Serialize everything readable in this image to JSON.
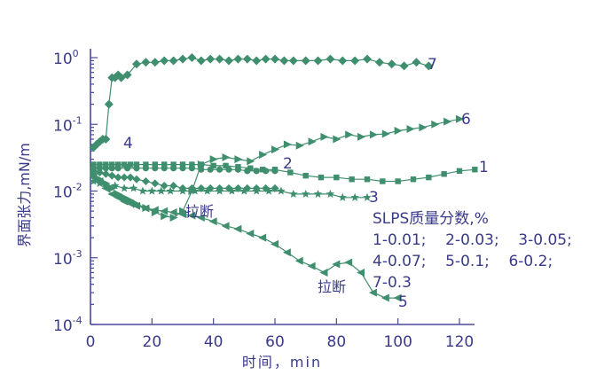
{
  "chart_data": {
    "type": "scatter",
    "title": "",
    "xlabel": "时间，min",
    "ylabel": "界面张力,mN/m",
    "xlim": [
      0,
      130
    ],
    "ylim": [
      0.0001,
      1.6
    ],
    "y_scale": "log",
    "x_ticks": [
      "0",
      "20",
      "40",
      "60",
      "80",
      "100",
      "120"
    ],
    "y_ticks": [
      {
        "base": "10",
        "exp": "0"
      },
      {
        "base": "10",
        "exp": "-1"
      },
      {
        "base": "10",
        "exp": "-2"
      },
      {
        "base": "10",
        "exp": "-3"
      },
      {
        "base": "10",
        "exp": "-4"
      }
    ],
    "legend": {
      "title": "SLPS质量分数,%",
      "lines": [
        "1-0.01;    2-0.03;    3-0.05;",
        "4-0.07;    5-0.1;    6-0.2;",
        "7-0.3"
      ]
    },
    "annotations": [
      "拉断",
      "拉断"
    ],
    "colors": {
      "series": "#3f8f6f",
      "text": "#3a3a8a"
    },
    "series": [
      {
        "name": "1",
        "marker": "square",
        "label": "1",
        "x": [
          1,
          3,
          5,
          7,
          9,
          11,
          13,
          15,
          18,
          21,
          24,
          27,
          30,
          33,
          36,
          40,
          44,
          48,
          52,
          56,
          60,
          65,
          70,
          75,
          80,
          85,
          90,
          95,
          100,
          105,
          110,
          115,
          120,
          125
        ],
        "y": [
          0.025,
          0.025,
          0.025,
          0.025,
          0.025,
          0.025,
          0.025,
          0.025,
          0.025,
          0.025,
          0.025,
          0.025,
          0.025,
          0.025,
          0.025,
          0.024,
          0.024,
          0.023,
          0.022,
          0.021,
          0.021,
          0.019,
          0.017,
          0.016,
          0.016,
          0.015,
          0.015,
          0.014,
          0.014,
          0.015,
          0.016,
          0.018,
          0.02,
          0.021
        ]
      },
      {
        "name": "2",
        "marker": "circle",
        "label": "2",
        "x": [
          1,
          3,
          5,
          7,
          9,
          12,
          15,
          18,
          21,
          24,
          27,
          30,
          33,
          36,
          39,
          42,
          45,
          48,
          51,
          54,
          57,
          60
        ],
        "y": [
          0.022,
          0.022,
          0.022,
          0.022,
          0.022,
          0.022,
          0.022,
          0.022,
          0.022,
          0.022,
          0.022,
          0.022,
          0.022,
          0.021,
          0.021,
          0.021,
          0.021,
          0.021,
          0.02,
          0.02,
          0.02,
          0.02
        ]
      },
      {
        "name": "3",
        "marker": "star",
        "label": "3",
        "x": [
          1,
          3,
          5,
          8,
          11,
          14,
          17,
          20,
          23,
          26,
          30,
          34,
          38,
          42,
          46,
          50,
          54,
          58,
          62,
          66,
          70,
          74,
          78,
          82,
          86,
          90
        ],
        "y": [
          0.014,
          0.013,
          0.012,
          0.012,
          0.011,
          0.011,
          0.01,
          0.01,
          0.01,
          0.01,
          0.01,
          0.01,
          0.01,
          0.01,
          0.01,
          0.01,
          0.01,
          0.01,
          0.01,
          0.009,
          0.009,
          0.009,
          0.009,
          0.008,
          0.008,
          0.008
        ]
      },
      {
        "name": "4",
        "marker": "diamond",
        "label": "4",
        "x": [
          1,
          3,
          5,
          7,
          9,
          11,
          13,
          15,
          18,
          21,
          24,
          27,
          30,
          33,
          36,
          39,
          42,
          45,
          48,
          51,
          54,
          57,
          60
        ],
        "y": [
          0.02,
          0.019,
          0.018,
          0.017,
          0.016,
          0.016,
          0.016,
          0.015,
          0.014,
          0.013,
          0.012,
          0.012,
          0.011,
          0.011,
          0.011,
          0.011,
          0.011,
          0.011,
          0.011,
          0.011,
          0.011,
          0.011,
          0.011
        ]
      },
      {
        "name": "5",
        "marker": "triangle-left",
        "label": "5",
        "x": [
          1,
          3,
          5,
          7,
          9,
          11,
          13,
          15,
          18,
          21,
          24,
          27,
          30,
          33,
          36,
          40,
          44,
          48,
          52,
          56,
          60,
          64,
          68,
          72,
          76,
          80,
          84,
          88,
          92,
          96,
          100
        ],
        "y": [
          0.016,
          0.014,
          0.011,
          0.009,
          0.008,
          0.007,
          0.0065,
          0.006,
          0.0055,
          0.0052,
          0.005,
          0.0048,
          0.0045,
          0.0043,
          0.004,
          0.0035,
          0.003,
          0.0027,
          0.0023,
          0.002,
          0.0016,
          0.0012,
          0.0009,
          0.00075,
          0.0006,
          0.0008,
          0.00085,
          0.0006,
          0.0003,
          0.00025,
          0.00025
        ]
      },
      {
        "name": "6",
        "marker": "triangle-right",
        "label": "6",
        "x": [
          1,
          3,
          5,
          7,
          9,
          11,
          13,
          15,
          18,
          21,
          24,
          27,
          30,
          33,
          36,
          40,
          44,
          48,
          52,
          56,
          60,
          64,
          68,
          72,
          76,
          80,
          84,
          88,
          92,
          96,
          100,
          104,
          108,
          112,
          116,
          120
        ],
        "y": [
          0.018,
          0.015,
          0.013,
          0.011,
          0.009,
          0.008,
          0.0072,
          0.0064,
          0.0056,
          0.0048,
          0.0042,
          0.004,
          0.005,
          0.01,
          0.025,
          0.03,
          0.032,
          0.03,
          0.028,
          0.035,
          0.042,
          0.05,
          0.048,
          0.055,
          0.065,
          0.06,
          0.07,
          0.065,
          0.07,
          0.072,
          0.08,
          0.085,
          0.09,
          0.1,
          0.11,
          0.12
        ]
      },
      {
        "name": "7",
        "marker": "diamond-large",
        "label": "7",
        "x": [
          1,
          2,
          3,
          4,
          5,
          6,
          7,
          8,
          9,
          10,
          12,
          15,
          18,
          21,
          24,
          27,
          30,
          33,
          36,
          39,
          42,
          45,
          48,
          51,
          54,
          57,
          60,
          63,
          66,
          70,
          74,
          78,
          82,
          86,
          90,
          94,
          98,
          102,
          106,
          110
        ],
        "y": [
          0.045,
          0.05,
          0.055,
          0.06,
          0.06,
          0.2,
          0.5,
          0.5,
          0.55,
          0.5,
          0.55,
          0.8,
          0.85,
          0.85,
          0.9,
          0.9,
          0.95,
          1.0,
          0.9,
          0.95,
          0.95,
          0.9,
          0.95,
          0.95,
          0.9,
          0.95,
          0.95,
          0.9,
          0.9,
          0.9,
          0.9,
          0.95,
          0.9,
          0.9,
          0.95,
          0.85,
          0.8,
          0.75,
          0.85,
          0.75
        ]
      }
    ]
  }
}
